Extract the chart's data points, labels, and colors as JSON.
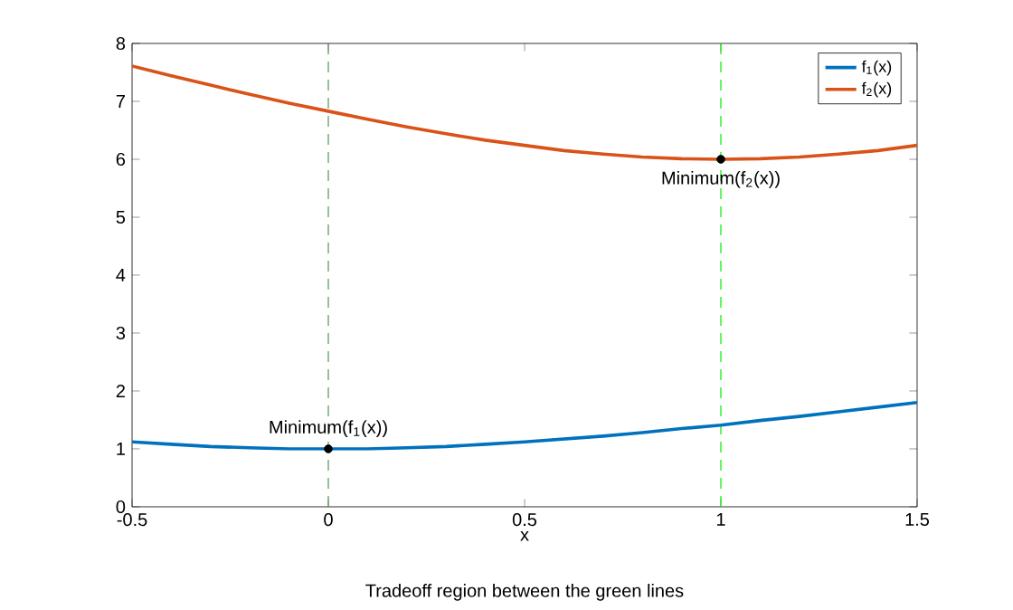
{
  "chart_data": {
    "type": "line",
    "xlabel": "x",
    "annotations": [
      "Tradeoff region between the green lines",
      {
        "text": "Minimum(f$_{1}$(x))",
        "x": 0,
        "y": 1
      },
      {
        "text": "Minimum(f$_{2}$(x))",
        "x": 1,
        "y": 6
      }
    ],
    "xlim": [
      -0.5,
      1.5
    ],
    "ylim": [
      0,
      8
    ],
    "xticks": [
      -0.5,
      0,
      0.5,
      1,
      1.5
    ],
    "yticks": [
      0,
      1,
      2,
      3,
      4,
      5,
      6,
      7,
      8
    ],
    "legend": "top right",
    "grid": false,
    "line_style": "solid",
    "series": [
      {
        "name": "f$_{1}$(x)",
        "color": "#0072bd",
        "marker": "none",
        "x": [
          -0.5,
          -0.4,
          -0.3,
          -0.2,
          -0.1,
          0,
          0.1,
          0.2,
          0.3,
          0.4,
          0.5,
          0.6,
          0.7,
          0.8,
          0.9,
          1.0,
          1.1,
          1.2,
          1.3,
          1.4,
          1.5
        ],
        "values": [
          1.12,
          1.08,
          1.04,
          1.02,
          1.0,
          1.0,
          1.0,
          1.02,
          1.04,
          1.08,
          1.12,
          1.17,
          1.22,
          1.28,
          1.35,
          1.41,
          1.49,
          1.56,
          1.64,
          1.72,
          1.8
        ]
      },
      {
        "name": "f$_{2}$(x)",
        "color": "#d95319",
        "marker": "none",
        "x": [
          -0.5,
          -0.4,
          -0.3,
          -0.2,
          -0.1,
          0,
          0.1,
          0.2,
          0.3,
          0.4,
          0.5,
          0.6,
          0.7,
          0.8,
          0.9,
          1.0,
          1.1,
          1.2,
          1.3,
          1.4,
          1.5
        ],
        "values": [
          7.61,
          7.44,
          7.28,
          7.12,
          6.97,
          6.83,
          6.69,
          6.56,
          6.44,
          6.33,
          6.24,
          6.15,
          6.09,
          6.04,
          6.01,
          6.0,
          6.01,
          6.04,
          6.09,
          6.15,
          6.24
        ]
      },
      {
        "type": "scatter",
        "color": "#000000",
        "marker": "circle",
        "x": [
          0,
          1
        ],
        "values": [
          1,
          6
        ]
      }
    ],
    "ref_lines": [
      {
        "axis": "x",
        "value": 0,
        "color": "#5a8f5a",
        "line_style": "dashed"
      },
      {
        "axis": "x",
        "value": 1,
        "color": "#00ee00",
        "line_style": "dashed"
      }
    ]
  }
}
